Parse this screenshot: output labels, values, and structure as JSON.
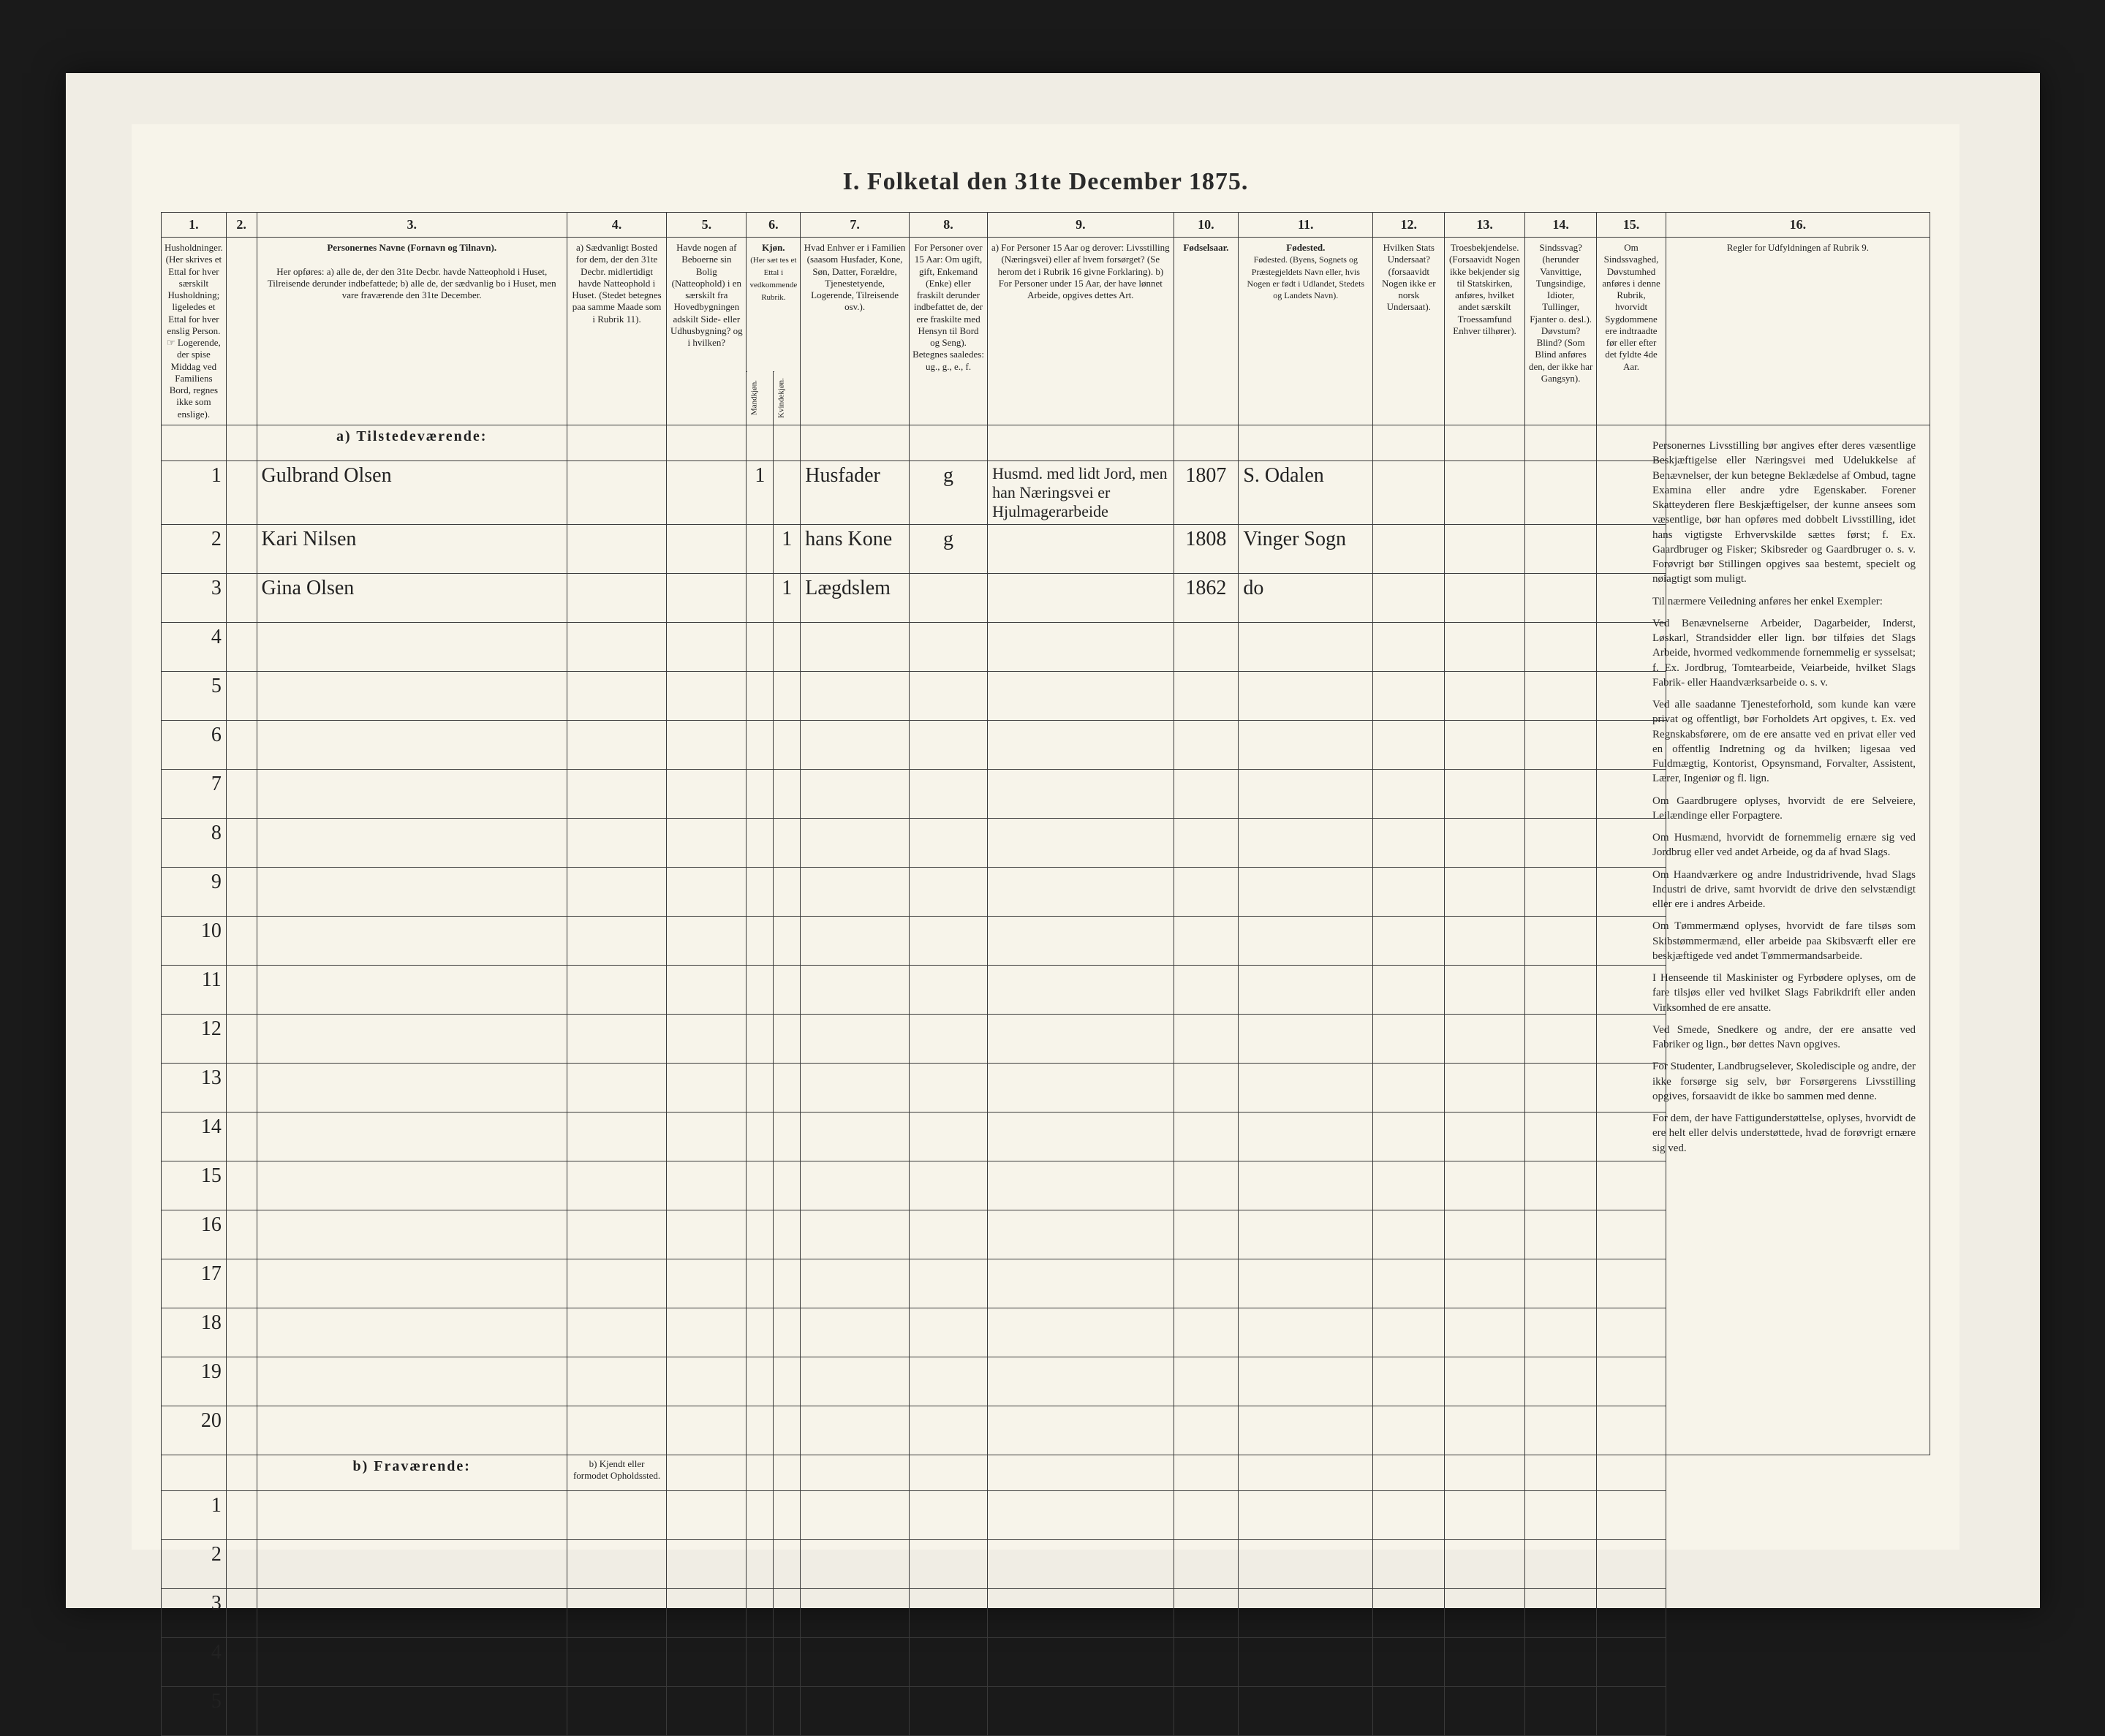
{
  "title": "I. Folketal den 31te December 1875.",
  "columns": {
    "nums": [
      "1.",
      "2.",
      "3.",
      "4.",
      "5.",
      "6.",
      "7.",
      "8.",
      "9.",
      "10.",
      "11.",
      "12.",
      "13.",
      "14.",
      "15.",
      "16."
    ],
    "col6_header": "Kjøn.",
    "col6a": "Mandkjøn.",
    "col6b": "Kvindekjøn.",
    "headers": {
      "c1": "Husholdninger.\n(Her skrives et Ettal for hver særskilt Husholdning; ligeledes et Ettal for hver enslig Person.\n☞ Logerende, der spise Middag ved Familiens Bord, regnes ikke som enslige).",
      "c3_title": "Personernes Navne (Fornavn og Tilnavn).",
      "c3_body": "Her opføres:\na) alle de, der den 31te Decbr. havde Natteophold i Huset, Tilreisende derunder indbefattede;\nb) alle de, der sædvanlig bo i Huset, men vare fraværende den 31te December.",
      "c4": "a) Sædvanligt Bosted for dem, der den 31te Decbr. midlertidigt havde Natteophold i Huset. (Stedet betegnes paa samme Maade som i Rubrik 11).",
      "c5": "Havde nogen af Beboerne sin Bolig (Natteophold) i en særskilt fra Hovedbygningen adskilt Side- eller Udhusbygning? og i hvilken?",
      "c7": "Hvad Enhver er i Familien (saasom Husfader, Kone, Søn, Datter, Forældre, Tjenestetyende, Logerende, Tilreisende osv.).",
      "c8": "For Personer over 15 Aar: Om ugift, gift, Enkemand (Enke) eller fraskilt derunder indbefattet de, der ere fraskilte med Hensyn til Bord og Seng). Betegnes saaledes: ug., g., e., f.",
      "c9": "a) For Personer 15 Aar og derover: Livsstilling (Næringsvei) eller af hvem forsørget? (Se herom det i Rubrik 16 givne Forklaring).\nb) For Personer under 15 Aar, der have lønnet Arbeide, opgives dettes Art.",
      "c10": "Fødselsaar.",
      "c11": "Fødested.\n(Byens, Sognets og Præstegjeldets Navn eller, hvis Nogen er født i Udlandet, Stedets og Landets Navn).",
      "c12": "Hvilken Stats Undersaat? (forsaavidt Nogen ikke er norsk Undersaat).",
      "c13": "Troesbekjendelse. (Forsaavidt Nogen ikke bekjender sig til Statskirken, anføres, hvilket andet særskilt Troessamfund Enhver tilhører).",
      "c14": "Sindssvag? (herunder Vanvittige, Tungsindige, Idioter, Tullinger, Fjanter o. desl.). Døvstum? Blind? (Som Blind anføres den, der ikke har Gangsyn).",
      "c15": "Om Sindssvaghed, Døvstumhed anføres i denne Rubrik, hvorvidt Sygdommene ere indtraadte før eller efter det fyldte 4de Aar.",
      "c16": "Regler for Udfyldningen af Rubrik 9."
    }
  },
  "section_present": "a) Tilstedeværende:",
  "section_absent": "b) Fraværende:",
  "absent_col4": "b) Kjendt eller formodet Opholdssted.",
  "rows": [
    {
      "n": "1",
      "name": "Gulbrand Olsen",
      "m": "1",
      "k": "",
      "fam": "Husfader",
      "civ": "g",
      "occ": "Husmd. med lidt Jord, men han Næringsvei er Hjulmagerarbeide",
      "year": "1807",
      "place": "S. Odalen"
    },
    {
      "n": "2",
      "name": "Kari Nilsen",
      "m": "",
      "k": "1",
      "fam": "hans Kone",
      "civ": "g",
      "occ": "",
      "year": "1808",
      "place": "Vinger Sogn"
    },
    {
      "n": "3",
      "name": "Gina Olsen",
      "m": "",
      "k": "1",
      "fam": "Lægdslem",
      "civ": "",
      "occ": "",
      "year": "1862",
      "place": "do"
    }
  ],
  "empty_rows": [
    "4",
    "5",
    "6",
    "7",
    "8",
    "9",
    "10",
    "11",
    "12",
    "13",
    "14",
    "15",
    "16",
    "17",
    "18",
    "19",
    "20"
  ],
  "absent_rows": [
    "1",
    "2",
    "3",
    "4",
    "5"
  ],
  "instructions": [
    "Personernes Livsstilling bør angives efter deres væsentlige Beskjæftigelse eller Næringsvei med Udelukkelse af Benævnelser, der kun betegne Beklædelse af Ombud, tagne Examina eller andre ydre Egenskaber. Forener Skatteyderen flere Beskjæftigelser, der kunne ansees som væsentlige, bør han opføres med dobbelt Livsstilling, idet hans vigtigste Erhvervskilde sættes først; f. Ex. Gaardbruger og Fisker; Skibsreder og Gaardbruger o. s. v. Forøvrigt bør Stillingen opgives saa bestemt, specielt og nøiagtigt som muligt.",
    "Til nærmere Veiledning anføres her enkel Exempler:",
    "Ved Benævnelserne Arbeider, Dagarbeider, Inderst, Løskarl, Strandsidder eller lign. bør tilføies det Slags Arbeide, hvormed vedkommende fornemmelig er sysselsat; f. Ex. Jordbrug, Tomtearbeide, Veiarbeide, hvilket Slags Fabrik- eller Haandværksarbeide o. s. v.",
    "Ved alle saadanne Tjenesteforhold, som kunde kan være privat og offentligt, bør Forholdets Art opgives, t. Ex. ved Regnskabsførere, om de ere ansatte ved en privat eller ved en offentlig Indretning og da hvilken; ligesaa ved Fuldmægtig, Kontorist, Opsynsmand, Forvalter, Assistent, Lærer, Ingeniør og fl. lign.",
    "Om Gaardbrugere oplyses, hvorvidt de ere Selveiere, Leilændinge eller Forpagtere.",
    "Om Husmænd, hvorvidt de fornemmelig ernære sig ved Jordbrug eller ved andet Arbeide, og da af hvad Slags.",
    "Om Haandværkere og andre Industridrivende, hvad Slags Industri de drive, samt hvorvidt de drive den selvstændigt eller ere i andres Arbeide.",
    "Om Tømmermænd oplyses, hvorvidt de fare tilsøs som Skibstømmermænd, eller arbeide paa Skibsværft eller ere beskjæftigede ved andet Tømmermandsarbeide.",
    "I Henseende til Maskinister og Fyrbødere oplyses, om de fare tilsjøs eller ved hvilket Slags Fabrikdrift eller anden Virksomhed de ere ansatte.",
    "Ved Smede, Snedkere og andre, der ere ansatte ved Fabriker og lign., bør dettes Navn opgives.",
    "For Studenter, Landbrugselever, Skoledisciple og andre, der ikke forsørge sig selv, bør Forsørgerens Livsstilling opgives, forsaavidt de ikke bo sammen med denne.",
    "For dem, der have Fattigunderstøttelse, oplyses, hvorvidt de ere helt eller delvis understøttede, hvad de forøvrigt ernære sig ved."
  ]
}
